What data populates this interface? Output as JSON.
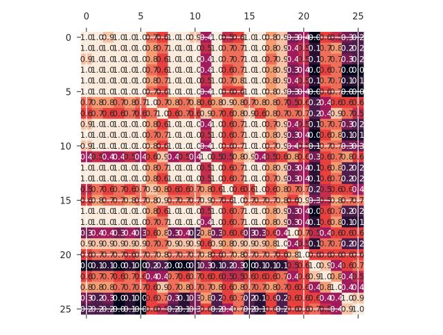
{
  "chart_data": {
    "type": "heatmap",
    "title": "",
    "xlabel": "",
    "ylabel": "",
    "x_ticks": [
      "0",
      "5",
      "10",
      "15",
      "20",
      "25"
    ],
    "y_ticks": [
      "0",
      "5",
      "10",
      "15",
      "20",
      "25"
    ],
    "x_tick_positions": [
      0,
      5,
      10,
      15,
      20,
      25
    ],
    "y_tick_positions": [
      0,
      5,
      10,
      15,
      20,
      25
    ],
    "n_rows": 26,
    "n_cols": 26,
    "xaxis_position": "top",
    "grid": true,
    "annotated": true,
    "value_format": "1 decimal",
    "colormap": [
      "#03051a",
      "#4c1d4b",
      "#a11a5b",
      "#e83f3f",
      "#f69c73",
      "#faebdd"
    ],
    "vmin": 0,
    "vmax": 1,
    "matrix": [
      [
        1,
        1,
        0.9,
        1,
        1,
        1,
        0.7,
        0.6,
        1,
        1,
        0.9,
        0.4,
        1,
        0.5,
        0.6,
        1,
        1,
        0.8,
        0.9,
        0.3,
        0.4,
        0,
        0.6,
        0.5,
        0.3,
        0.2
      ],
      [
        1,
        1,
        1,
        1,
        1,
        1,
        0.8,
        0.7,
        1,
        1,
        1,
        0.5,
        1,
        0.7,
        0.7,
        1,
        1,
        0.8,
        0.9,
        0.4,
        0.5,
        0.1,
        0.7,
        0.8,
        0.2,
        0.2
      ],
      [
        0.9,
        1,
        1,
        1,
        1,
        1,
        0.8,
        0.6,
        1,
        1,
        1,
        0.4,
        1,
        0.7,
        0.7,
        1,
        1,
        0.7,
        0.9,
        0.4,
        0.5,
        0.1,
        0.7,
        0.7,
        0.3,
        0.2
      ],
      [
        1,
        1,
        1,
        1,
        1,
        1,
        0.7,
        0.6,
        1,
        1,
        1,
        0.4,
        1,
        0.6,
        0.7,
        1,
        1,
        0.8,
        0.9,
        0.3,
        0.4,
        0,
        0.6,
        0.7,
        0,
        0
      ],
      [
        1,
        1,
        1,
        1,
        1,
        1,
        0.8,
        0.7,
        1,
        1,
        1,
        0.5,
        1,
        0.7,
        0.8,
        1,
        1,
        0.8,
        0.9,
        0.4,
        0.5,
        0.1,
        0.7,
        0.7,
        0.1,
        0.1
      ],
      [
        1,
        1,
        1,
        1,
        1,
        1,
        0.7,
        0.6,
        1,
        1,
        1,
        0.4,
        1,
        0.6,
        0.6,
        1,
        1,
        0.8,
        0.9,
        0.3,
        0.4,
        0,
        0.6,
        0.7,
        0,
        0
      ],
      [
        0.7,
        0.8,
        0.8,
        0.7,
        0.8,
        0.7,
        1,
        0.7,
        0.8,
        0.7,
        0.8,
        0.6,
        0.8,
        0.9,
        0.8,
        0.7,
        0.8,
        0.8,
        0.7,
        0.5,
        0.6,
        0.2,
        0.4,
        0.6,
        0.6,
        0.6
      ],
      [
        0.6,
        0.7,
        0.6,
        0.6,
        0.7,
        0.6,
        0.7,
        1,
        0.6,
        0.7,
        0.6,
        0.9,
        0.7,
        0.6,
        0.8,
        0.9,
        0.6,
        0.8,
        0.7,
        0.7,
        0.7,
        0.2,
        0.4,
        0.9,
        0.7,
        0.5
      ],
      [
        0.9,
        1,
        1,
        1,
        1,
        1,
        0.8,
        0.6,
        1,
        1,
        1,
        0.4,
        1,
        0.6,
        0.7,
        1,
        1,
        0.7,
        0.9,
        0.4,
        0.5,
        0.1,
        0.7,
        0.7,
        0.3,
        0.2
      ],
      [
        1,
        1,
        1,
        1,
        1,
        1,
        0.7,
        0.7,
        1,
        1,
        1,
        0.5,
        1,
        0.6,
        0.7,
        1,
        1,
        0.8,
        0.9,
        0.3,
        0.4,
        0,
        0.6,
        0.8,
        0.1,
        0.1
      ],
      [
        0.9,
        1,
        1,
        1,
        1,
        1,
        0.8,
        0.6,
        1,
        1,
        1,
        0.4,
        1,
        0.6,
        0.7,
        1,
        1,
        0.7,
        0.9,
        0.4,
        0.5,
        0.1,
        0.7,
        0.7,
        0.3,
        0.3
      ],
      [
        0.4,
        0.5,
        0.4,
        0.4,
        0.5,
        0.4,
        0.6,
        0.9,
        0.4,
        0.5,
        0.4,
        1,
        0.5,
        0.5,
        0.8,
        0.9,
        0.4,
        0.5,
        0.6,
        0.8,
        0.6,
        0.3,
        0.6,
        0.7,
        0.8,
        0.6
      ],
      [
        1,
        1,
        1,
        1,
        1,
        1,
        0.8,
        0.7,
        1,
        1,
        1,
        0.5,
        1,
        0.6,
        0.7,
        1,
        1,
        0.8,
        0.9,
        0.3,
        0.4,
        0.1,
        0.6,
        0.8,
        0.2,
        0.2
      ],
      [
        1,
        1,
        1,
        1,
        1,
        1,
        0.8,
        0.6,
        1,
        1,
        1,
        0.5,
        1,
        0.6,
        0.7,
        1,
        1,
        0.7,
        0.9,
        0.3,
        0.4,
        0.1,
        0.6,
        0.7,
        0.2,
        0.2
      ],
      [
        0.5,
        0.7,
        0.6,
        0.7,
        0.6,
        0.7,
        0.9,
        0.8,
        0.6,
        0.6,
        0.7,
        0.8,
        0.6,
        1,
        0.6,
        0.6,
        1,
        0.6,
        0.8,
        0.7,
        0.7,
        0.2,
        0.5,
        0.6,
        0.6,
        0.4
      ],
      [
        0.6,
        0.8,
        0.7,
        0.7,
        0.8,
        0.7,
        0.8,
        0.9,
        0.7,
        0.7,
        0.7,
        0.9,
        0.7,
        0.6,
        1,
        0.7,
        0.7,
        0.7,
        0.8,
        0.6,
        0.9,
        0.3,
        0.5,
        0.8,
        0.7,
        0.7
      ],
      [
        1,
        1,
        1,
        1,
        1,
        1,
        0.8,
        0.6,
        1,
        1,
        1,
        0.5,
        1,
        0.6,
        0.7,
        1,
        1,
        0.8,
        0.9,
        0.3,
        0.4,
        0,
        0.6,
        0.7,
        0.2,
        0.2
      ],
      [
        1,
        1,
        1,
        1,
        1,
        1,
        0.7,
        0.7,
        1,
        1,
        1,
        0.4,
        1,
        0.6,
        0.7,
        1,
        1,
        0.8,
        0.9,
        0.3,
        0.4,
        0.1,
        0.6,
        0.8,
        0.1,
        0.1
      ],
      [
        0.3,
        0.4,
        0.4,
        0.3,
        0.4,
        0.3,
        0.6,
        0.8,
        0.3,
        0.4,
        0.2,
        0.8,
        0.3,
        0.6,
        0.6,
        0.3,
        0.3,
        0.6,
        0.4,
        1,
        0.7,
        0.5,
        0.4,
        0.6,
        0.6,
        0.6
      ],
      [
        0.9,
        0.9,
        0.9,
        0.9,
        0.9,
        0.9,
        0.7,
        0.7,
        0.9,
        0.9,
        0.9,
        0.6,
        0.9,
        0.8,
        0.9,
        0.9,
        0.9,
        0.8,
        1,
        0.4,
        0.5,
        0.1,
        0.7,
        0.7,
        0.2,
        0.2
      ],
      [
        0.6,
        0.7,
        0.7,
        0.7,
        0.6,
        0.7,
        0.7,
        0.8,
        0.7,
        0.7,
        0.7,
        0.8,
        0.6,
        0.7,
        0.8,
        0.7,
        0.7,
        0.7,
        0.6,
        0.8,
        1,
        0.6,
        0.6,
        0.6,
        0.6,
        0.6
      ],
      [
        0,
        0.1,
        0.1,
        0,
        0.1,
        0,
        0.2,
        0.2,
        0,
        0,
        0.1,
        0.3,
        0.1,
        0.2,
        0.3,
        0,
        0.1,
        0.1,
        0.1,
        0.5,
        0.6,
        1,
        0.9,
        0.4,
        0.6,
        0.7
      ],
      [
        0.6,
        0.7,
        0.7,
        0.6,
        0.7,
        0.6,
        0.4,
        0.4,
        0.7,
        0.6,
        0.7,
        0.6,
        0.6,
        0.5,
        0.5,
        0.6,
        0.6,
        0.6,
        0.7,
        0.4,
        0.6,
        0.9,
        1,
        0.8,
        0.4,
        0.5
      ],
      [
        0.8,
        0.8,
        0.8,
        0.7,
        0.7,
        0.7,
        0.6,
        0.9,
        0.7,
        0.8,
        0.7,
        0.7,
        0.8,
        0.6,
        0.8,
        0.7,
        0.7,
        0.8,
        0.7,
        0.6,
        0.6,
        0.4,
        0.8,
        1,
        0.4,
        0.4
      ],
      [
        0.3,
        0.2,
        0.3,
        0,
        0.1,
        0,
        0.6,
        0.7,
        0.3,
        0.1,
        0.3,
        0.8,
        0.2,
        0.6,
        0.7,
        0.2,
        0.1,
        0.6,
        0.2,
        0.6,
        0.6,
        0.6,
        0.4,
        0.4,
        1,
        0.9
      ],
      [
        0.2,
        0.2,
        0.2,
        0,
        0.1,
        0,
        0.6,
        0.5,
        0.2,
        0.1,
        0.3,
        0.6,
        0.2,
        0.4,
        0.7,
        0.2,
        0.1,
        0.6,
        0.2,
        0.6,
        0.6,
        0.7,
        0.5,
        0.4,
        0.9,
        1
      ]
    ]
  }
}
